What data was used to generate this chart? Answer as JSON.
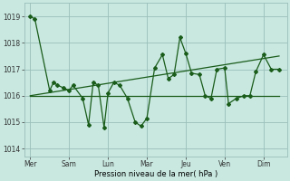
{
  "background_color": "#c8e8e0",
  "grid_color": "#9bbfba",
  "line_color": "#1a5c1a",
  "xlabel": "Pression niveau de la mer( hPa )",
  "ylim": [
    1013.7,
    1019.5
  ],
  "yticks": [
    1014,
    1015,
    1016,
    1017,
    1018,
    1019
  ],
  "x_labels": [
    "Mer",
    "Sam",
    "Lun",
    "Mar",
    "Jeu",
    "Ven",
    "Dim"
  ],
  "x_tick_pos": [
    0,
    1,
    2,
    3,
    4,
    5,
    6
  ],
  "xlim": [
    -0.15,
    6.6
  ],
  "series1_x": [
    0.0,
    0.12,
    0.5,
    0.6,
    0.7,
    0.85,
    1.0,
    1.1,
    1.35,
    1.5,
    1.62,
    1.75,
    1.9,
    2.0,
    2.15,
    2.3,
    2.5,
    2.7,
    2.85,
    3.0,
    3.2,
    3.4,
    3.55,
    3.7,
    3.85,
    4.0,
    4.15,
    4.35,
    4.5,
    4.65,
    4.8,
    5.0,
    5.1,
    5.3,
    5.5,
    5.65,
    5.8,
    6.0,
    6.2,
    6.4
  ],
  "series1_y": [
    1019.0,
    1018.9,
    1016.2,
    1016.5,
    1016.4,
    1016.3,
    1016.2,
    1016.4,
    1015.9,
    1014.9,
    1016.5,
    1016.4,
    1014.8,
    1016.1,
    1016.5,
    1016.4,
    1015.9,
    1015.0,
    1014.85,
    1015.15,
    1017.05,
    1017.55,
    1016.65,
    1016.8,
    1018.2,
    1017.6,
    1016.85,
    1016.8,
    1016.0,
    1015.9,
    1017.0,
    1017.05,
    1015.7,
    1015.9,
    1016.0,
    1016.0,
    1016.9,
    1017.55,
    1017.0,
    1017.0
  ],
  "series2_x": [
    0.0,
    6.4
  ],
  "series2_y": [
    1016.0,
    1017.5
  ],
  "series3_x": [
    0.0,
    6.4
  ],
  "series3_y": [
    1016.0,
    1016.0
  ],
  "vlines": [
    0,
    1,
    2,
    3,
    4,
    5,
    6
  ]
}
